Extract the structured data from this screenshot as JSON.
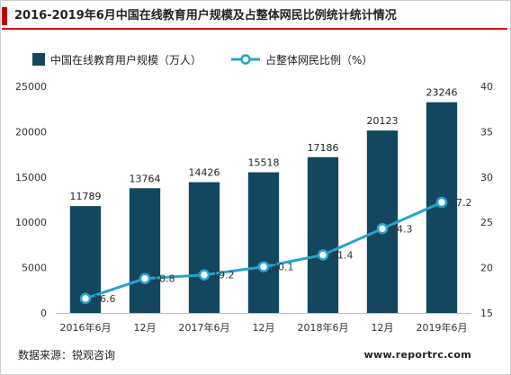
{
  "title": "2016-2019年6月中国在线教育用户规模及占整体网民比例统计统计情况",
  "source": "数据来源：锐观咨询",
  "website": "www.reportrc.com",
  "colors": {
    "bar": "#12475f",
    "line": "#29a3cc",
    "marker_fill": "#ffffff",
    "axis_text": "#333333",
    "title_accent": "#c00000"
  },
  "chart_data": {
    "type": "bar",
    "categories": [
      "2016年6月",
      "12月",
      "2017年6月",
      "12月",
      "2018年6月",
      "12月",
      "2019年6月"
    ],
    "series": [
      {
        "name": "中国在线教育用户规模（万人）",
        "type": "bar",
        "axis": "left",
        "values": [
          11789,
          13764,
          14426,
          15518,
          17186,
          20123,
          23246
        ],
        "labels": [
          "11789",
          "13764",
          "14426",
          "15518",
          "17186",
          "20123",
          "23246"
        ]
      },
      {
        "name": "占整体网民比例（%）",
        "type": "line",
        "axis": "right",
        "values": [
          16.6,
          18.8,
          19.2,
          20.1,
          21.4,
          24.3,
          27.2
        ],
        "labels": [
          "16.6",
          "18.8",
          "19.2",
          "20.1",
          "21.4",
          "24.3",
          "27.2"
        ]
      }
    ],
    "left_axis": {
      "range": [
        0,
        25000
      ],
      "ticks": [
        0,
        5000,
        10000,
        15000,
        20000,
        25000
      ],
      "tick_labels": [
        "0",
        "5000",
        "10000",
        "15000",
        "20000",
        "25000"
      ]
    },
    "right_axis": {
      "range": [
        15,
        40
      ],
      "ticks": [
        15,
        20,
        25,
        30,
        35,
        40
      ],
      "tick_labels": [
        "15",
        "20",
        "25",
        "30",
        "35",
        "40"
      ]
    },
    "grid": false,
    "legend_position": "top-left"
  }
}
